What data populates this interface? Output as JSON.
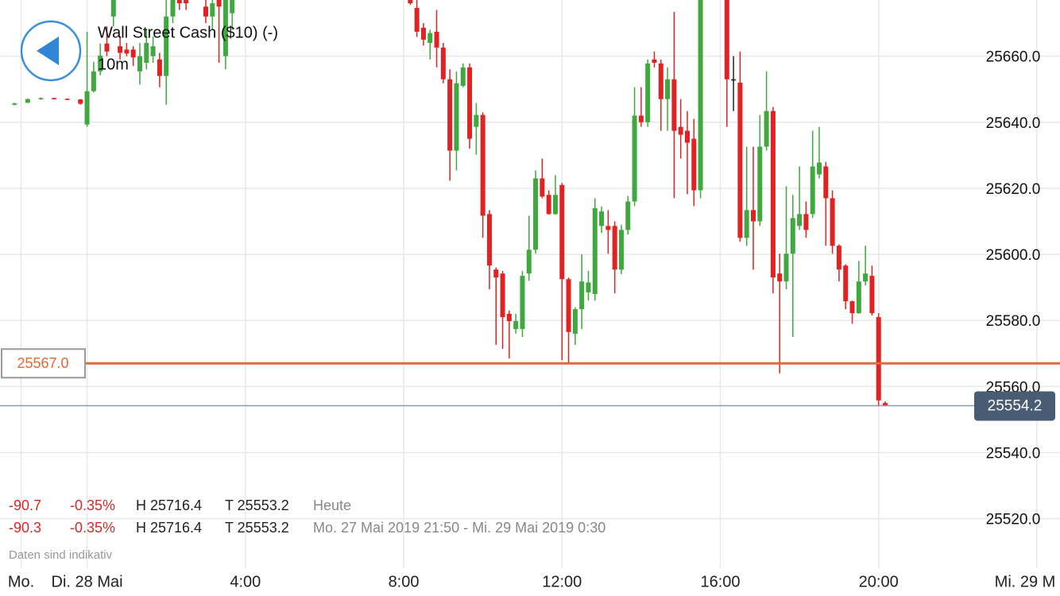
{
  "chart_data": {
    "type": "candlestick",
    "title": "Wall Street Cash ($10) (-)",
    "timeframe": "10m",
    "x": [
      -110,
      -90,
      -70,
      -50,
      -30,
      -10,
      0,
      10,
      20,
      30,
      40,
      50,
      60,
      70,
      80,
      90,
      100,
      110,
      120,
      130,
      140,
      150,
      180,
      190,
      200,
      210,
      220,
      490,
      500,
      510,
      520,
      530,
      540,
      550,
      560,
      570,
      580,
      590,
      600,
      610,
      620,
      630,
      640,
      650,
      660,
      670,
      680,
      690,
      700,
      710,
      720,
      730,
      740,
      750,
      760,
      770,
      780,
      790,
      800,
      810,
      820,
      830,
      840,
      850,
      860,
      870,
      880,
      890,
      900,
      910,
      920,
      930,
      970,
      980,
      990,
      1000,
      1010,
      1020,
      1030,
      1040,
      1050,
      1060,
      1070,
      1080,
      1090,
      1100,
      1110,
      1120,
      1130,
      1140,
      1150,
      1160,
      1170,
      1180,
      1190,
      1200,
      1210
    ],
    "open": [
      25645.3,
      25645.9,
      25647.0,
      25647.3,
      25647.1,
      25646.9,
      25639.3,
      25649.4,
      25655.4,
      25663.8,
      25672,
      25663,
      25662,
      25662,
      25655.4,
      25658,
      25660,
      25659,
      25654,
      25672,
      25684,
      25684,
      25675,
      25672,
      25684,
      25660,
      25673,
      25677,
      25674.6,
      25668.6,
      25664,
      25667.4,
      25662.6,
      25653,
      25631.4,
      25651,
      25656.6,
      25638.6,
      25642.2,
      25612.2,
      25595.4,
      25594.2,
      25582,
      25577.4,
      25577.4,
      25594.2,
      25601.4,
      25623,
      25618,
      25612.2,
      25621,
      25592.5,
      25576,
      25583.4,
      25588.5,
      25588,
      25608.6,
      25608.6,
      25608.6,
      25595.4,
      25607.4,
      25616,
      25642,
      25640,
      25659,
      25657.8,
      25647,
      25653,
      25638.6,
      25637.4,
      25635,
      25619.4,
      25677,
      25653,
      25652,
      25605,
      25613.4,
      25610,
      25632.6,
      25643.4,
      25594.2,
      25591.8,
      25600.2,
      25608.6,
      25612.2,
      25612.2,
      25624.2,
      25626.6,
      25617,
      25602.6,
      25596.6,
      25585.8,
      25582.2,
      25591.8,
      25593.5,
      25581,
      25555
    ],
    "high": [
      25645.9,
      25647.2,
      25647.5,
      25647.4,
      25647.2,
      25647.0,
      25667.4,
      25658.3,
      25663.8,
      25669,
      25685,
      25666,
      25664,
      25663,
      25664,
      25668,
      25666,
      25661,
      25678,
      25690,
      25690,
      25686,
      25685,
      25682,
      25686,
      25680,
      25690,
      25680,
      25677,
      25670,
      25668,
      25674,
      25664,
      25656,
      25655.4,
      25657.8,
      25657.8,
      25645.8,
      25643,
      25613.4,
      25596,
      25595,
      25583,
      25582,
      25595,
      25611.7,
      25625.4,
      25629,
      25619.4,
      25624,
      25621.6,
      25593,
      25584,
      25600,
      25595,
      25617,
      25614.5,
      25613.4,
      25610,
      25609,
      25617.7,
      25650.6,
      25650.6,
      25659,
      25661.4,
      25659,
      25656.6,
      25673.4,
      25647,
      25643.4,
      25641,
      25680,
      25678,
      25660,
      25661.4,
      25632.6,
      25632.6,
      25642.2,
      25655.4,
      25644.6,
      25600.2,
      25620.6,
      25618,
      25626.6,
      25616,
      25637.4,
      25638.6,
      25628,
      25619.4,
      25603,
      25597,
      25586,
      25598,
      25602.6,
      25596.6,
      25582.2,
      25555.5
    ],
    "low": [
      25645.1,
      25645.8,
      25646.8,
      25646.9,
      25646.7,
      25645.3,
      25638.6,
      25649.0,
      25654.2,
      25660,
      25669,
      25659,
      25660,
      25657,
      25651.4,
      25656,
      25658,
      25650.6,
      25645.3,
      25670,
      25674,
      25674,
      25670,
      25668,
      25658,
      25656,
      25668,
      25675.5,
      25665.8,
      25663.2,
      25659,
      25656.6,
      25651.8,
      25622.3,
      25625.4,
      25650.6,
      25632,
      25630.2,
      25605,
      25589.4,
      25572.6,
      25571.4,
      25568.5,
      25576,
      25575,
      25592,
      25600.2,
      25617,
      25612,
      25612,
      25568,
      25567,
      25572.6,
      25577.4,
      25586,
      25586,
      25606.5,
      25600.2,
      25588.2,
      25594,
      25606,
      25614.6,
      25638.6,
      25638.6,
      25656.6,
      25637.4,
      25637.4,
      25617,
      25629,
      25618.2,
      25614.6,
      25617,
      25638.6,
      25643.4,
      25603.8,
      25602.6,
      25595.4,
      25608.6,
      25631.4,
      25588.2,
      25564,
      25589.4,
      25575,
      25607.4,
      25605,
      25611,
      25623,
      25602.6,
      25600.2,
      25591.8,
      25583.4,
      25579,
      25582,
      25590.6,
      25581.5,
      25554,
      25554
    ],
    "close": [
      25645.7,
      25647.0,
      25647.3,
      25647.1,
      25646.9,
      25645.6,
      25649.4,
      25655.4,
      25660.2,
      25661.4,
      25682,
      25661,
      25660.8,
      25659.6,
      25660,
      25664,
      25663,
      25654,
      25672,
      25685,
      25676,
      25676,
      25672,
      25676,
      25675,
      25678,
      25682,
      25676,
      25667.4,
      25665,
      25667,
      25662.6,
      25653,
      25631.4,
      25651.8,
      25656.6,
      25635,
      25642.2,
      25611.7,
      25596.6,
      25593,
      25581,
      25579.8,
      25579.8,
      25593.5,
      25601.4,
      25623,
      25617.5,
      25612.2,
      25618,
      25592.5,
      25576.5,
      25583.4,
      25591.8,
      25591.5,
      25614,
      25613,
      25607.4,
      25595.4,
      25607.4,
      25616,
      25642,
      25640,
      25657.8,
      25658,
      25647,
      25653,
      25637.4,
      25636.2,
      25633.8,
      25619.4,
      25677,
      25653,
      25653,
      25605,
      25613.4,
      25610,
      25632.6,
      25643.4,
      25593,
      25591.8,
      25600.2,
      25611,
      25612.2,
      25607.4,
      25626.6,
      25627.8,
      25617,
      25602.6,
      25595.4,
      25585.8,
      25582.2,
      25591.8,
      25594.2,
      25582.2,
      25555.8,
      25554.2
    ],
    "up_color": "#3fa83f",
    "down_color": "#e02222",
    "flat_color": "#222222",
    "xlim": [
      -132,
      1475
    ],
    "xticks": [
      {
        "value": -100,
        "label": "Mo."
      },
      {
        "value": 0,
        "label": "Di. 28 Mai"
      },
      {
        "value": 240,
        "label": "4:00"
      },
      {
        "value": 480,
        "label": "8:00"
      },
      {
        "value": 720,
        "label": "12:00"
      },
      {
        "value": 960,
        "label": "16:00"
      },
      {
        "value": 1200,
        "label": "20:00"
      },
      {
        "value": 1440,
        "label": "Mi. 29 M"
      }
    ],
    "ylim": [
      25505,
      25677
    ],
    "yticks": [
      {
        "value": 25520,
        "label": "25520.0"
      },
      {
        "value": 25540,
        "label": "25540.0"
      },
      {
        "value": 25560,
        "label": "25560.0"
      },
      {
        "value": 25580,
        "label": "25580.0"
      },
      {
        "value": 25600,
        "label": "25600.0"
      },
      {
        "value": 25620,
        "label": "25620.0"
      },
      {
        "value": 25640,
        "label": "25640.0"
      },
      {
        "value": 25660,
        "label": "25660.0"
      }
    ],
    "grid": true,
    "reference_line": {
      "value": 25567,
      "label": "25567.0",
      "color": "#e06a3a"
    },
    "last_price": {
      "value": 25554.2,
      "label": "25554.2",
      "color": "#8c99a8"
    }
  },
  "stats": [
    [
      "-90.7",
      "-0.35%",
      "H 25716.4",
      "T 25553.2",
      "Heute"
    ],
    [
      "-90.3",
      "-0.35%",
      "H 25716.4",
      "T 25553.2",
      "Mo. 27 Mai 2019 21:50 - Mi. 29 Mai 2019 0:30"
    ]
  ],
  "disclaimer": "Daten sind indikativ"
}
